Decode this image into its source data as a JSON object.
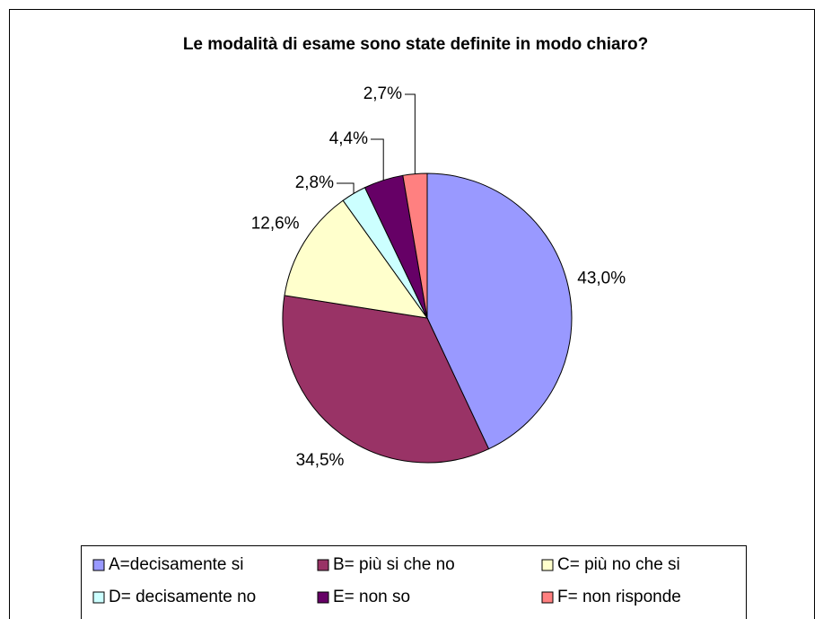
{
  "chart_data": {
    "type": "pie",
    "title": "Le modalità di esame sono state definite in modo chiaro?",
    "categories": [
      "A=decisamente si",
      "B= più si che no",
      "C= più no che si",
      "D= decisamente no",
      "E= non so",
      "F= non risponde"
    ],
    "values": [
      43.0,
      34.5,
      12.6,
      2.8,
      4.4,
      2.7
    ],
    "value_labels": [
      "43,0%",
      "34,5%",
      "12,6%",
      "2,8%",
      "4,4%",
      "2,7%"
    ],
    "colors": [
      "#9999ff",
      "#993366",
      "#ffffcc",
      "#ccffff",
      "#660066",
      "#ff8080"
    ],
    "legend": "bottom"
  }
}
